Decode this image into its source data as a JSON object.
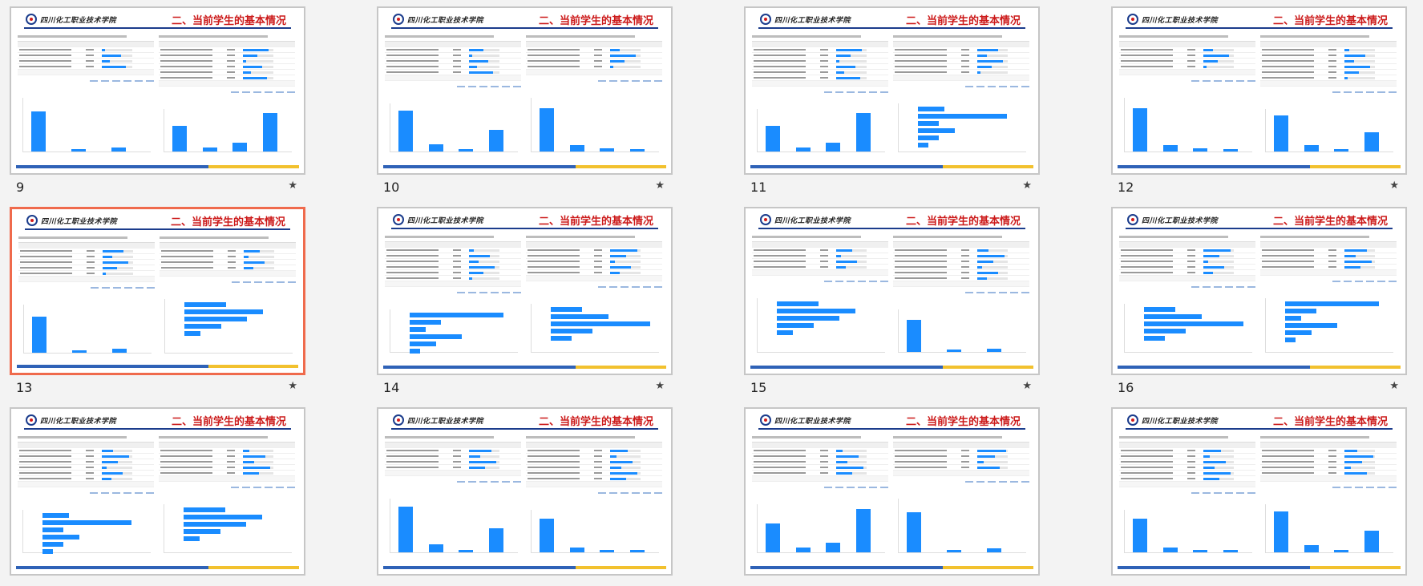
{
  "slide_title": "二、当前学生的基本情况",
  "logo_text": "四川化工职业技术学院",
  "selected_slide": "13",
  "slides": [
    {
      "num": "9",
      "left": "bar",
      "right": "bar"
    },
    {
      "num": "10",
      "left": "bar",
      "right": "bar"
    },
    {
      "num": "11",
      "left": "bar",
      "right": "hbar"
    },
    {
      "num": "12",
      "left": "bar",
      "right": "bar"
    },
    {
      "num": "13",
      "left": "bar",
      "right": "hbar"
    },
    {
      "num": "14",
      "left": "hbar",
      "right": "hbar"
    },
    {
      "num": "15",
      "left": "hbar",
      "right": "bar"
    },
    {
      "num": "16",
      "left": "hbar",
      "right": "hbar"
    },
    {
      "num": "",
      "left": "hbar",
      "right": "hbar"
    },
    {
      "num": "",
      "left": "bar",
      "right": "bar"
    },
    {
      "num": "",
      "left": "bar",
      "right": "bar"
    },
    {
      "num": "",
      "left": "bar",
      "right": "bar"
    }
  ],
  "icons": {
    "star": "star-icon"
  },
  "colors": {
    "accent_bar": "#1a8cff",
    "title_red": "#cc1a1a",
    "selected_border": "#ef6a4c"
  }
}
